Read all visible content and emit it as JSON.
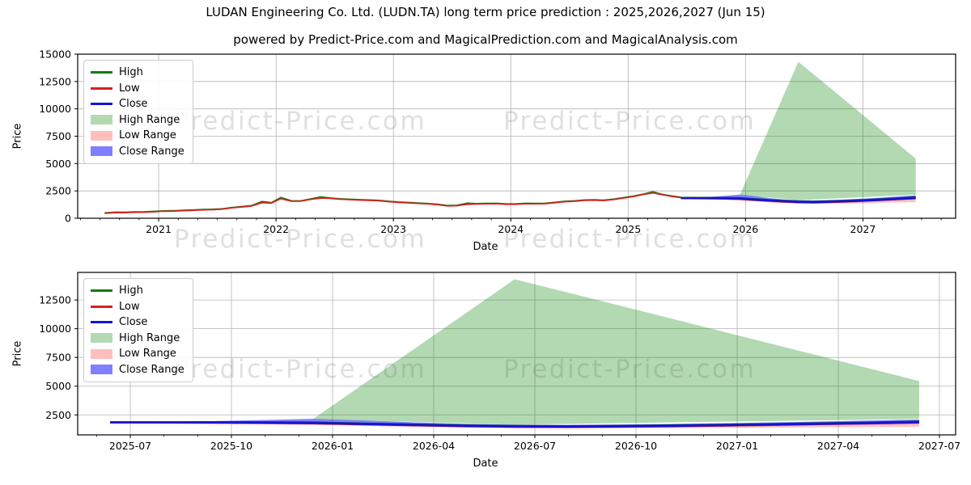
{
  "figure": {
    "title": "LUDAN Engineering Co. Ltd. (LUDN.TA) long term price prediction : 2025,2026,2027 (Jun 15)",
    "subtitle": "powered by Predict-Price.com and MagicalPrediction.com and MagicalAnalysis.com",
    "watermark": "Predict-Price.com"
  },
  "colors": {
    "high_line": "#0e7d0e",
    "low_line": "#d81f1f",
    "close_line": "#1414d2",
    "high_fill": "rgba(0,128,0,0.3)",
    "low_fill": "rgba(255,0,0,0.25)",
    "close_fill": "rgba(0,0,255,0.5)",
    "grid": "#b4b4b4",
    "frame": "#000000"
  },
  "legend": [
    {
      "label": "High",
      "swatch": "line",
      "color": "#0e7d0e"
    },
    {
      "label": "Low",
      "swatch": "line",
      "color": "#d81f1f"
    },
    {
      "label": "Close",
      "swatch": "line",
      "color": "#1414d2"
    },
    {
      "label": "High Range",
      "swatch": "patch",
      "color": "rgba(0,128,0,0.3)"
    },
    {
      "label": "Low Range",
      "swatch": "patch",
      "color": "rgba(255,0,0,0.25)"
    },
    {
      "label": "Close Range",
      "swatch": "patch",
      "color": "rgba(0,0,255,0.5)"
    }
  ],
  "series": {
    "historical": {
      "x": [
        2020.54,
        2020.63,
        2020.71,
        2020.79,
        2020.88,
        2020.96,
        2021.04,
        2021.13,
        2021.21,
        2021.29,
        2021.38,
        2021.46,
        2021.54,
        2021.63,
        2021.71,
        2021.79,
        2021.88,
        2021.96,
        2022.04,
        2022.13,
        2022.21,
        2022.29,
        2022.38,
        2022.46,
        2022.54,
        2022.63,
        2022.71,
        2022.79,
        2022.88,
        2022.96,
        2023.04,
        2023.13,
        2023.21,
        2023.29,
        2023.38,
        2023.46,
        2023.54,
        2023.63,
        2023.71,
        2023.79,
        2023.88,
        2023.96,
        2024.04,
        2024.13,
        2024.21,
        2024.29,
        2024.38,
        2024.46,
        2024.54,
        2024.63,
        2024.71,
        2024.79,
        2024.88,
        2024.96,
        2025.04,
        2025.13,
        2025.21,
        2025.29,
        2025.38,
        2025.45
      ],
      "low": [
        450,
        515,
        505,
        540,
        555,
        590,
        640,
        650,
        695,
        720,
        765,
        785,
        825,
        955,
        1035,
        1115,
        1420,
        1385,
        1790,
        1560,
        1555,
        1715,
        1845,
        1815,
        1740,
        1700,
        1665,
        1635,
        1600,
        1515,
        1450,
        1400,
        1360,
        1315,
        1235,
        1125,
        1145,
        1275,
        1300,
        1315,
        1330,
        1275,
        1270,
        1330,
        1320,
        1330,
        1420,
        1515,
        1550,
        1635,
        1650,
        1615,
        1720,
        1845,
        1975,
        2175,
        2320,
        2145,
        1985,
        1880
      ],
      "high": [
        490,
        555,
        545,
        580,
        595,
        630,
        680,
        690,
        735,
        760,
        805,
        825,
        865,
        995,
        1075,
        1155,
        1530,
        1425,
        1895,
        1600,
        1595,
        1755,
        1950,
        1855,
        1780,
        1740,
        1705,
        1675,
        1640,
        1555,
        1490,
        1440,
        1400,
        1355,
        1275,
        1165,
        1185,
        1380,
        1340,
        1355,
        1370,
        1315,
        1310,
        1370,
        1360,
        1370,
        1460,
        1555,
        1590,
        1675,
        1690,
        1655,
        1760,
        1885,
        2015,
        2215,
        2420,
        2185,
        2025,
        1920
      ]
    },
    "prediction": {
      "x": [
        2025.45,
        2025.58,
        2025.7,
        2025.83,
        2025.95,
        2026.08,
        2026.2,
        2026.33,
        2026.45,
        2026.58,
        2026.7,
        2026.83,
        2026.95,
        2027.08,
        2027.2,
        2027.33,
        2027.45
      ],
      "close": [
        1850,
        1845,
        1840,
        1820,
        1800,
        1700,
        1620,
        1540,
        1490,
        1470,
        1500,
        1540,
        1590,
        1650,
        1720,
        1800,
        1880
      ],
      "close_hi": [
        1870,
        1900,
        1960,
        2050,
        2160,
        2020,
        1850,
        1720,
        1650,
        1630,
        1660,
        1710,
        1770,
        1840,
        1920,
        2010,
        2100
      ],
      "close_lo": [
        1830,
        1800,
        1770,
        1740,
        1700,
        1600,
        1520,
        1450,
        1400,
        1390,
        1410,
        1450,
        1500,
        1550,
        1610,
        1670,
        1740
      ],
      "low": [
        1800,
        1790,
        1780,
        1760,
        1730,
        1640,
        1560,
        1480,
        1430,
        1410,
        1440,
        1480,
        1530,
        1590,
        1660,
        1730,
        1800
      ],
      "low_lo": [
        1790,
        1760,
        1720,
        1680,
        1630,
        1540,
        1460,
        1390,
        1340,
        1320,
        1330,
        1350,
        1370,
        1390,
        1420,
        1450,
        1480
      ],
      "high": [
        1900,
        1900,
        1900,
        1890,
        1870,
        1780,
        1700,
        1620,
        1570,
        1550,
        1580,
        1620,
        1670,
        1730,
        1800,
        1870,
        1950
      ],
      "high_range": {
        "x": [
          2025.95,
          2026.45,
          2026.7,
          2027.45
        ],
        "top": [
          2100,
          14300,
          12100,
          5450
        ],
        "bx": [
          2027.45,
          2026.95,
          2026.45,
          2025.95
        ],
        "bottom": [
          2150,
          1900,
          1650,
          2140
        ]
      }
    }
  },
  "chart_data": [
    {
      "type": "line",
      "title": "powered by Predict-Price.com and MagicalPrediction.com and MagicalAnalysis.com",
      "xlabel": "Date",
      "ylabel": "Price",
      "grid": true,
      "legend_position": "upper left",
      "xlim": [
        2020.31,
        2027.79
      ],
      "ylim": [
        0,
        15000
      ],
      "yticks": [
        0,
        2500,
        5000,
        7500,
        10000,
        12500,
        15000
      ],
      "xticks": [
        {
          "v": 2021,
          "label": "2021"
        },
        {
          "v": 2022,
          "label": "2022"
        },
        {
          "v": 2023,
          "label": "2023"
        },
        {
          "v": 2024,
          "label": "2024"
        },
        {
          "v": 2025,
          "label": "2025"
        },
        {
          "v": 2026,
          "label": "2026"
        },
        {
          "v": 2027,
          "label": "2027"
        }
      ],
      "series_keys": [
        "historical",
        "prediction"
      ]
    },
    {
      "type": "line",
      "title": "",
      "xlabel": "Date",
      "ylabel": "Price",
      "grid": true,
      "legend_position": "upper left",
      "xlim": [
        2025.37,
        2027.54
      ],
      "ylim": [
        760,
        14900
      ],
      "yticks": [
        2500,
        5000,
        7500,
        10000,
        12500
      ],
      "xticks": [
        {
          "v": 2025.5,
          "label": "2025-07"
        },
        {
          "v": 2025.75,
          "label": "2025-10"
        },
        {
          "v": 2026.0,
          "label": "2026-01"
        },
        {
          "v": 2026.25,
          "label": "2026-04"
        },
        {
          "v": 2026.5,
          "label": "2026-07"
        },
        {
          "v": 2026.75,
          "label": "2026-10"
        },
        {
          "v": 2027.0,
          "label": "2027-01"
        },
        {
          "v": 2027.25,
          "label": "2027-04"
        },
        {
          "v": 2027.5,
          "label": "2027-07"
        }
      ],
      "series_keys": [
        "prediction"
      ]
    }
  ]
}
